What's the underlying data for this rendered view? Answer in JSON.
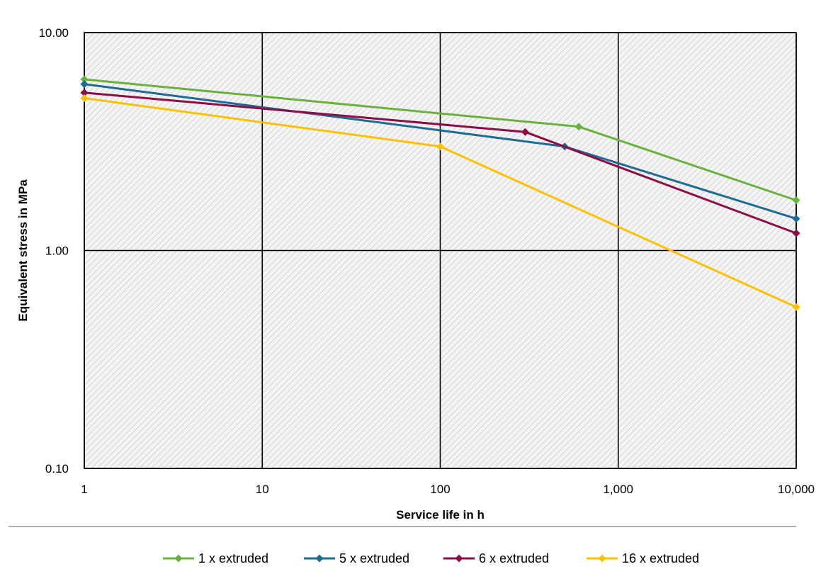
{
  "chart_data": {
    "type": "line",
    "xlabel": "Service life in h",
    "ylabel": "Equivalent stress in MPa",
    "x_scale": "log",
    "y_scale": "log",
    "xlim": [
      1,
      10000
    ],
    "ylim": [
      0.1,
      10
    ],
    "x_ticks": [
      1,
      10,
      100,
      1000,
      10000
    ],
    "x_tick_labels": [
      "1",
      "10",
      "100",
      "1,000",
      "10,000"
    ],
    "y_ticks": [
      0.1,
      1,
      10
    ],
    "y_tick_labels": [
      "0.10",
      "1.00",
      "10.00"
    ],
    "grid": true,
    "plot_background": "hatched light grey",
    "legend_position": "bottom",
    "series": [
      {
        "name": "1 x extruded",
        "color": "#6AB23E",
        "marker": "diamond",
        "x": [
          1,
          600,
          10000
        ],
        "y": [
          6.1,
          3.7,
          1.7
        ]
      },
      {
        "name": "5 x extruded",
        "color": "#1F6B93",
        "marker": "diamond",
        "x": [
          1,
          500,
          10000
        ],
        "y": [
          5.8,
          3.0,
          1.4
        ]
      },
      {
        "name": "6 x extruded",
        "color": "#8B0F46",
        "marker": "diamond",
        "x": [
          1,
          300,
          10000
        ],
        "y": [
          5.3,
          3.5,
          1.2
        ]
      },
      {
        "name": "16 x extruded",
        "color": "#FFC000",
        "marker": "diamond",
        "x": [
          1,
          100,
          10000
        ],
        "y": [
          5.0,
          3.0,
          0.55
        ]
      }
    ]
  }
}
